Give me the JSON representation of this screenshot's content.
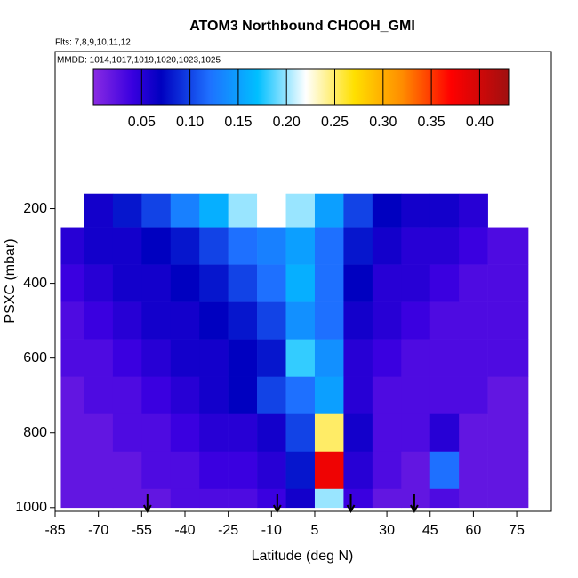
{
  "chart_data": {
    "type": "heatmap",
    "title": "ATOM3 Northbound CHOOH_GMI",
    "subtitle": "Flts: 7,8,9,10,11,12",
    "annotation": "MMDD: 1014,1017,1019,1020,1023,1025",
    "x_label": "Latitude (deg N)",
    "y_label": "PSXC (mbar)",
    "xlim": [
      -85,
      87
    ],
    "ylim": [
      1010,
      -220
    ],
    "xticks": [
      -85,
      -70,
      -55,
      -40,
      -25,
      -10,
      5,
      30,
      45,
      60,
      75
    ],
    "yticks": [
      200,
      400,
      600,
      800,
      1000
    ],
    "x_bins": [
      -83,
      -75,
      -65,
      -55,
      -45,
      -35,
      -25,
      -15,
      -5,
      5,
      15,
      25,
      35,
      45,
      55,
      65,
      79
    ],
    "y_bins": [
      160,
      250,
      350,
      450,
      550,
      650,
      750,
      850,
      950,
      1000
    ],
    "values": [
      [
        null,
        0.06,
        0.08,
        0.1,
        0.13,
        0.16,
        0.2,
        0.22,
        0.2,
        0.15,
        0.1,
        0.07,
        0.06,
        0.06,
        0.05,
        null
      ],
      [
        0.05,
        0.06,
        0.06,
        0.07,
        0.08,
        0.1,
        0.12,
        0.13,
        0.15,
        0.12,
        0.08,
        0.06,
        0.05,
        0.05,
        0.04,
        0.03
      ],
      [
        0.04,
        0.05,
        0.06,
        0.06,
        0.07,
        0.08,
        0.1,
        0.12,
        0.16,
        0.12,
        0.07,
        0.05,
        0.05,
        0.04,
        0.03,
        0.03
      ],
      [
        0.03,
        0.04,
        0.05,
        0.06,
        0.06,
        0.07,
        0.08,
        0.1,
        0.14,
        0.12,
        0.06,
        0.05,
        0.04,
        0.03,
        0.03,
        0.03
      ],
      [
        0.03,
        0.03,
        0.04,
        0.05,
        0.06,
        0.06,
        0.07,
        0.08,
        0.18,
        0.14,
        0.05,
        0.04,
        0.03,
        0.03,
        0.03,
        0.03
      ],
      [
        0.02,
        0.03,
        0.03,
        0.04,
        0.05,
        0.06,
        0.07,
        0.1,
        0.12,
        0.15,
        0.05,
        0.03,
        0.03,
        0.03,
        0.03,
        0.02
      ],
      [
        0.02,
        0.02,
        0.03,
        0.03,
        0.04,
        0.05,
        0.05,
        0.06,
        0.1,
        0.25,
        0.06,
        0.03,
        0.03,
        0.05,
        0.02,
        0.02
      ],
      [
        0.02,
        0.02,
        0.02,
        0.03,
        0.03,
        0.04,
        0.04,
        0.05,
        0.08,
        0.38,
        0.05,
        0.03,
        0.02,
        0.12,
        0.02,
        0.02
      ],
      [
        0.02,
        0.02,
        0.02,
        0.02,
        0.03,
        0.03,
        0.03,
        0.04,
        0.06,
        0.2,
        0.04,
        0.02,
        0.02,
        0.03,
        0.02,
        0.02
      ]
    ],
    "colorbar_lim": [
      0,
      0.43
    ],
    "colorbar_ticks": [
      0.05,
      0.1,
      0.15,
      0.2,
      0.25,
      0.3,
      0.35,
      0.4
    ],
    "colorbar_tick_labels": [
      "0.05",
      "0.10",
      "0.15",
      "0.20",
      "0.25",
      "0.30",
      "0.35",
      "0.40"
    ],
    "colorscale": [
      [
        0,
        "#8a2be2"
      ],
      [
        0.04,
        "#3a00e0"
      ],
      [
        0.07,
        "#0000c0"
      ],
      [
        0.12,
        "#1e70ff"
      ],
      [
        0.17,
        "#00bfff"
      ],
      [
        0.22,
        "#ffffff"
      ],
      [
        0.27,
        "#ffe000"
      ],
      [
        0.32,
        "#ff8c00"
      ],
      [
        0.37,
        "#ff0000"
      ],
      [
        0.43,
        "#a01010"
      ]
    ],
    "arrows": [
      -53,
      -8,
      17.5,
      39.5
    ]
  }
}
